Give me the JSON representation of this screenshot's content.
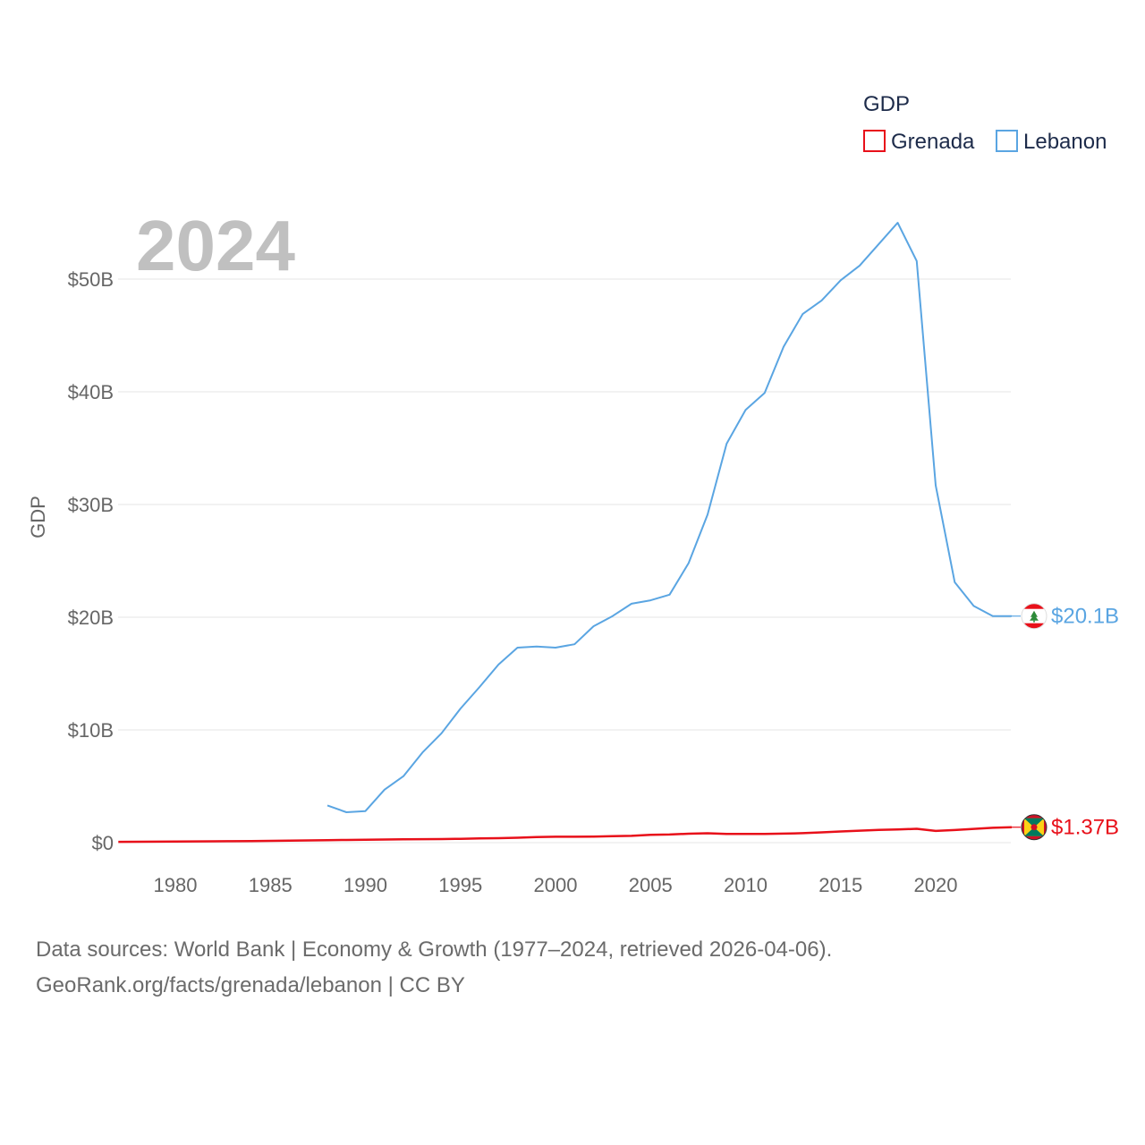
{
  "chart_data": {
    "type": "line",
    "year_label": "2024",
    "ylabel": "GDP",
    "legend_title": "GDP",
    "xlim": [
      1977,
      2024
    ],
    "ylim": [
      0,
      55000000000
    ],
    "y_ticks": [
      {
        "value": 0,
        "label": "$0"
      },
      {
        "value": 10000000000,
        "label": "$10B"
      },
      {
        "value": 20000000000,
        "label": "$20B"
      },
      {
        "value": 30000000000,
        "label": "$30B"
      },
      {
        "value": 40000000000,
        "label": "$40B"
      },
      {
        "value": 50000000000,
        "label": "$50B"
      }
    ],
    "x_ticks": [
      {
        "value": 1980,
        "label": "1980"
      },
      {
        "value": 1985,
        "label": "1985"
      },
      {
        "value": 1990,
        "label": "1990"
      },
      {
        "value": 1995,
        "label": "1995"
      },
      {
        "value": 2000,
        "label": "2000"
      },
      {
        "value": 2005,
        "label": "2005"
      },
      {
        "value": 2010,
        "label": "2010"
      },
      {
        "value": 2015,
        "label": "2015"
      },
      {
        "value": 2020,
        "label": "2020"
      }
    ],
    "series": [
      {
        "name": "Grenada",
        "color": "#e8101a",
        "end_label": "$1.37B",
        "flag": "grenada",
        "points": [
          [
            1977,
            0.07
          ],
          [
            1978,
            0.08
          ],
          [
            1979,
            0.09
          ],
          [
            1980,
            0.1
          ],
          [
            1981,
            0.11
          ],
          [
            1982,
            0.12
          ],
          [
            1983,
            0.13
          ],
          [
            1984,
            0.14
          ],
          [
            1985,
            0.16
          ],
          [
            1986,
            0.18
          ],
          [
            1987,
            0.2
          ],
          [
            1988,
            0.22
          ],
          [
            1989,
            0.24
          ],
          [
            1990,
            0.26
          ],
          [
            1991,
            0.28
          ],
          [
            1992,
            0.3
          ],
          [
            1993,
            0.31
          ],
          [
            1994,
            0.32
          ],
          [
            1995,
            0.34
          ],
          [
            1996,
            0.37
          ],
          [
            1997,
            0.4
          ],
          [
            1998,
            0.44
          ],
          [
            1999,
            0.49
          ],
          [
            2000,
            0.52
          ],
          [
            2001,
            0.52
          ],
          [
            2002,
            0.54
          ],
          [
            2003,
            0.58
          ],
          [
            2004,
            0.6
          ],
          [
            2005,
            0.7
          ],
          [
            2006,
            0.72
          ],
          [
            2007,
            0.79
          ],
          [
            2008,
            0.83
          ],
          [
            2009,
            0.77
          ],
          [
            2010,
            0.77
          ],
          [
            2011,
            0.78
          ],
          [
            2012,
            0.8
          ],
          [
            2013,
            0.84
          ],
          [
            2014,
            0.91
          ],
          [
            2015,
            0.99
          ],
          [
            2016,
            1.06
          ],
          [
            2017,
            1.13
          ],
          [
            2018,
            1.17
          ],
          [
            2019,
            1.23
          ],
          [
            2020,
            1.04
          ],
          [
            2021,
            1.12
          ],
          [
            2022,
            1.22
          ],
          [
            2023,
            1.32
          ],
          [
            2024,
            1.37
          ]
        ]
      },
      {
        "name": "Lebanon",
        "color": "#5aa5e2",
        "end_label": "$20.1B",
        "flag": "lebanon",
        "points": [
          [
            1988,
            3.3
          ],
          [
            1989,
            2.7
          ],
          [
            1990,
            2.8
          ],
          [
            1991,
            4.7
          ],
          [
            1992,
            5.9
          ],
          [
            1993,
            8.0
          ],
          [
            1994,
            9.7
          ],
          [
            1995,
            11.9
          ],
          [
            1996,
            13.8
          ],
          [
            1997,
            15.8
          ],
          [
            1998,
            17.3
          ],
          [
            1999,
            17.4
          ],
          [
            2000,
            17.3
          ],
          [
            2001,
            17.6
          ],
          [
            2002,
            19.2
          ],
          [
            2003,
            20.1
          ],
          [
            2004,
            21.2
          ],
          [
            2005,
            21.5
          ],
          [
            2006,
            22.0
          ],
          [
            2007,
            24.8
          ],
          [
            2008,
            29.1
          ],
          [
            2009,
            35.4
          ],
          [
            2010,
            38.4
          ],
          [
            2011,
            39.9
          ],
          [
            2012,
            44.0
          ],
          [
            2013,
            46.9
          ],
          [
            2014,
            48.1
          ],
          [
            2015,
            49.9
          ],
          [
            2016,
            51.2
          ],
          [
            2017,
            53.1
          ],
          [
            2018,
            55.0
          ],
          [
            2019,
            51.6
          ],
          [
            2020,
            31.7
          ],
          [
            2021,
            23.1
          ],
          [
            2022,
            21.0
          ],
          [
            2023,
            20.1
          ],
          [
            2024,
            20.1
          ]
        ]
      }
    ]
  },
  "footer": {
    "line1": "Data sources: World Bank | Economy & Growth (1977–2024, retrieved 2026-04-06).",
    "line2": "GeoRank.org/facts/grenada/lebanon | CC BY"
  }
}
